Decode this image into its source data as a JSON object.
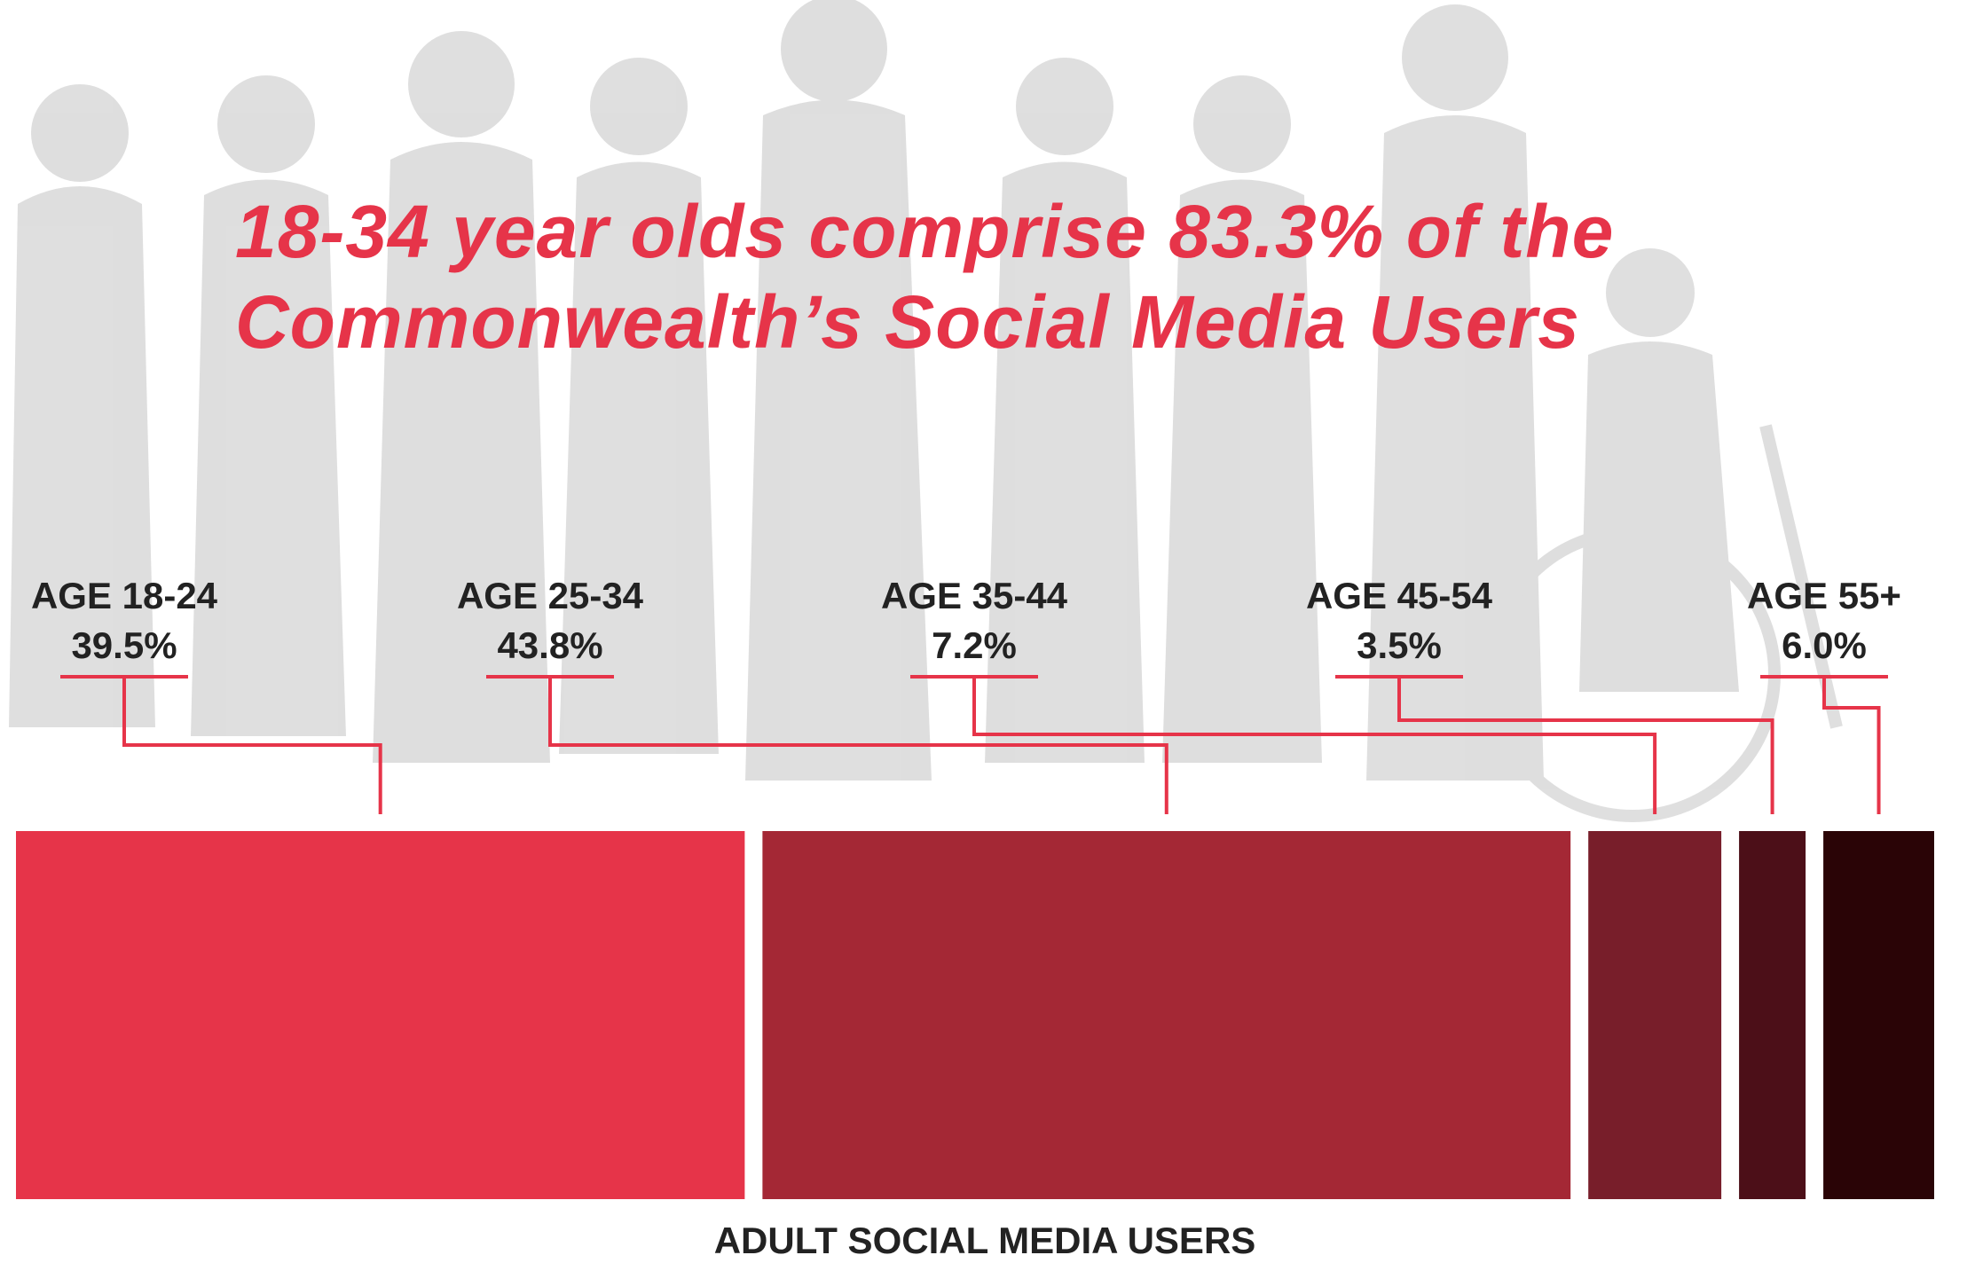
{
  "title_lines": [
    "18-34 year olds comprise 83.3% of the",
    "Commonwealth’s Social Media Users"
  ],
  "chart_data": {
    "type": "bar",
    "orientation": "horizontal-stacked",
    "categories": [
      "AGE 18-24",
      "AGE 25-34",
      "AGE 35-44",
      "AGE 45-54",
      "AGE 55+"
    ],
    "values": [
      39.5,
      43.8,
      7.2,
      3.5,
      6.0
    ],
    "value_labels": [
      "39.5%",
      "43.8%",
      "7.2%",
      "3.5%",
      "6.0%"
    ],
    "unit": "%",
    "title": "18-34 year olds comprise 83.3% of the Commonwealth’s Social Media Users",
    "xlabel": "ADULT SOCIAL MEDIA USERS",
    "ylabel": "",
    "colors": [
      "#e63449",
      "#a42835",
      "#781e2a",
      "#4c0f18",
      "#2a0406"
    ],
    "title_color": "#e63449",
    "connector_color": "#e63449",
    "legend": "none",
    "grid": false
  }
}
